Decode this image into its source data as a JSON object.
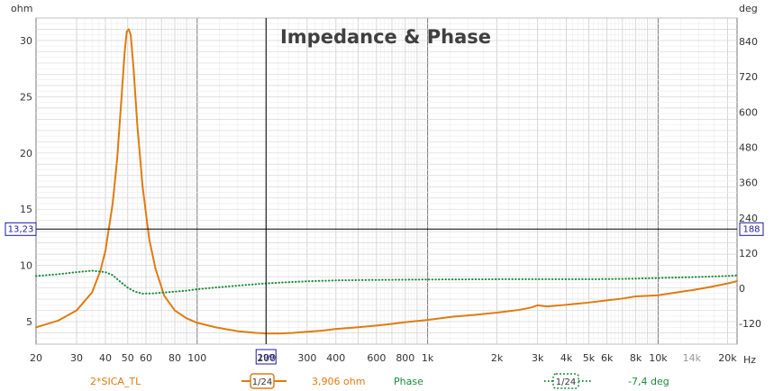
{
  "chart_data": {
    "type": "line",
    "title": "Impedance & Phase",
    "x_unit": "Hz",
    "x_scale": "log",
    "xlim": [
      20,
      22000
    ],
    "left_axis": {
      "unit": "ohm",
      "ylim": [
        3,
        32
      ],
      "ticks": [
        5,
        10,
        15,
        20,
        25,
        30
      ]
    },
    "right_axis": {
      "unit": "deg",
      "ylim": [
        -190,
        920
      ],
      "ticks": [
        -120,
        0,
        120,
        240,
        360,
        480,
        600,
        720,
        840
      ]
    },
    "x_ticks": [
      {
        "value": 20,
        "label": "20"
      },
      {
        "value": 30,
        "label": "30"
      },
      {
        "value": 40,
        "label": "40"
      },
      {
        "value": 50,
        "label": "50"
      },
      {
        "value": 60,
        "label": "60"
      },
      {
        "value": 80,
        "label": "80"
      },
      {
        "value": 100,
        "label": "100"
      },
      {
        "value": 200,
        "label": "200"
      },
      {
        "value": 300,
        "label": "300"
      },
      {
        "value": 400,
        "label": "400"
      },
      {
        "value": 600,
        "label": "600"
      },
      {
        "value": 800,
        "label": "800"
      },
      {
        "value": 1000,
        "label": "1k"
      },
      {
        "value": 2000,
        "label": "2k"
      },
      {
        "value": 3000,
        "label": "3k"
      },
      {
        "value": 4000,
        "label": "4k"
      },
      {
        "value": 5000,
        "label": "5k"
      },
      {
        "value": 6000,
        "label": "6k"
      },
      {
        "value": 8000,
        "label": "8k"
      },
      {
        "value": 10000,
        "label": "10k"
      },
      {
        "value": 14000,
        "label": "14k",
        "faded": true
      },
      {
        "value": 20000,
        "label": "20k"
      }
    ],
    "grid": true,
    "cursor": {
      "x": 199,
      "x_label": "199",
      "y_left": 13.23,
      "y_left_label": "13,23",
      "y_right_label": "188"
    },
    "series": [
      {
        "name": "2*SICA_TL",
        "axis": "left",
        "color": "#e07b10",
        "style": "solid",
        "points": [
          [
            20,
            4.5
          ],
          [
            25,
            5.1
          ],
          [
            30,
            6.0
          ],
          [
            35,
            7.6
          ],
          [
            38,
            9.5
          ],
          [
            40,
            11.3
          ],
          [
            43,
            15.5
          ],
          [
            45,
            19.5
          ],
          [
            47,
            25.0
          ],
          [
            48.5,
            29.0
          ],
          [
            49.5,
            30.8
          ],
          [
            50.5,
            31.0
          ],
          [
            51.5,
            30.5
          ],
          [
            53,
            27.5
          ],
          [
            55,
            22.5
          ],
          [
            58,
            17.0
          ],
          [
            62,
            12.3
          ],
          [
            66,
            9.7
          ],
          [
            72,
            7.3
          ],
          [
            80,
            6.0
          ],
          [
            90,
            5.3
          ],
          [
            100,
            4.9
          ],
          [
            120,
            4.5
          ],
          [
            150,
            4.15
          ],
          [
            180,
            4.0
          ],
          [
            199,
            3.95
          ],
          [
            230,
            3.95
          ],
          [
            260,
            4.0
          ],
          [
            300,
            4.1
          ],
          [
            350,
            4.2
          ],
          [
            400,
            4.35
          ],
          [
            500,
            4.5
          ],
          [
            600,
            4.65
          ],
          [
            700,
            4.8
          ],
          [
            800,
            4.95
          ],
          [
            1000,
            5.15
          ],
          [
            1300,
            5.45
          ],
          [
            1600,
            5.6
          ],
          [
            2000,
            5.8
          ],
          [
            2500,
            6.05
          ],
          [
            2800,
            6.25
          ],
          [
            3000,
            6.45
          ],
          [
            3300,
            6.35
          ],
          [
            4000,
            6.5
          ],
          [
            5000,
            6.7
          ],
          [
            6000,
            6.9
          ],
          [
            7000,
            7.05
          ],
          [
            8000,
            7.25
          ],
          [
            10000,
            7.35
          ],
          [
            12000,
            7.6
          ],
          [
            14000,
            7.8
          ],
          [
            17000,
            8.1
          ],
          [
            20000,
            8.4
          ],
          [
            22000,
            8.6
          ]
        ]
      },
      {
        "name": "Phase",
        "axis": "right",
        "color": "#1a8a3a",
        "style": "dotted",
        "points": [
          [
            20,
            42
          ],
          [
            25,
            48
          ],
          [
            30,
            55
          ],
          [
            35,
            60
          ],
          [
            40,
            55
          ],
          [
            43,
            45
          ],
          [
            46,
            25
          ],
          [
            50,
            2
          ],
          [
            54,
            -12
          ],
          [
            58,
            -18
          ],
          [
            65,
            -17
          ],
          [
            75,
            -13
          ],
          [
            90,
            -8
          ],
          [
            100,
            -3
          ],
          [
            130,
            5
          ],
          [
            160,
            11
          ],
          [
            200,
            17
          ],
          [
            250,
            21
          ],
          [
            300,
            24
          ],
          [
            400,
            27
          ],
          [
            500,
            28
          ],
          [
            700,
            29
          ],
          [
            1000,
            30
          ],
          [
            2000,
            31
          ],
          [
            3000,
            31
          ],
          [
            5000,
            31
          ],
          [
            7000,
            32
          ],
          [
            10000,
            35
          ],
          [
            14000,
            38
          ],
          [
            20000,
            42
          ],
          [
            22000,
            44
          ]
        ]
      }
    ],
    "legend": [
      {
        "label": "2*SICA_TL",
        "color": "#e07b10",
        "smoothing": "1/24",
        "readout": "3,906 ohm",
        "style": "solid"
      },
      {
        "label": "Phase",
        "color": "#1a8a3a",
        "smoothing": "1/24",
        "readout": "-7,4 deg",
        "style": "dotted"
      }
    ],
    "legend_position": "bottom"
  }
}
